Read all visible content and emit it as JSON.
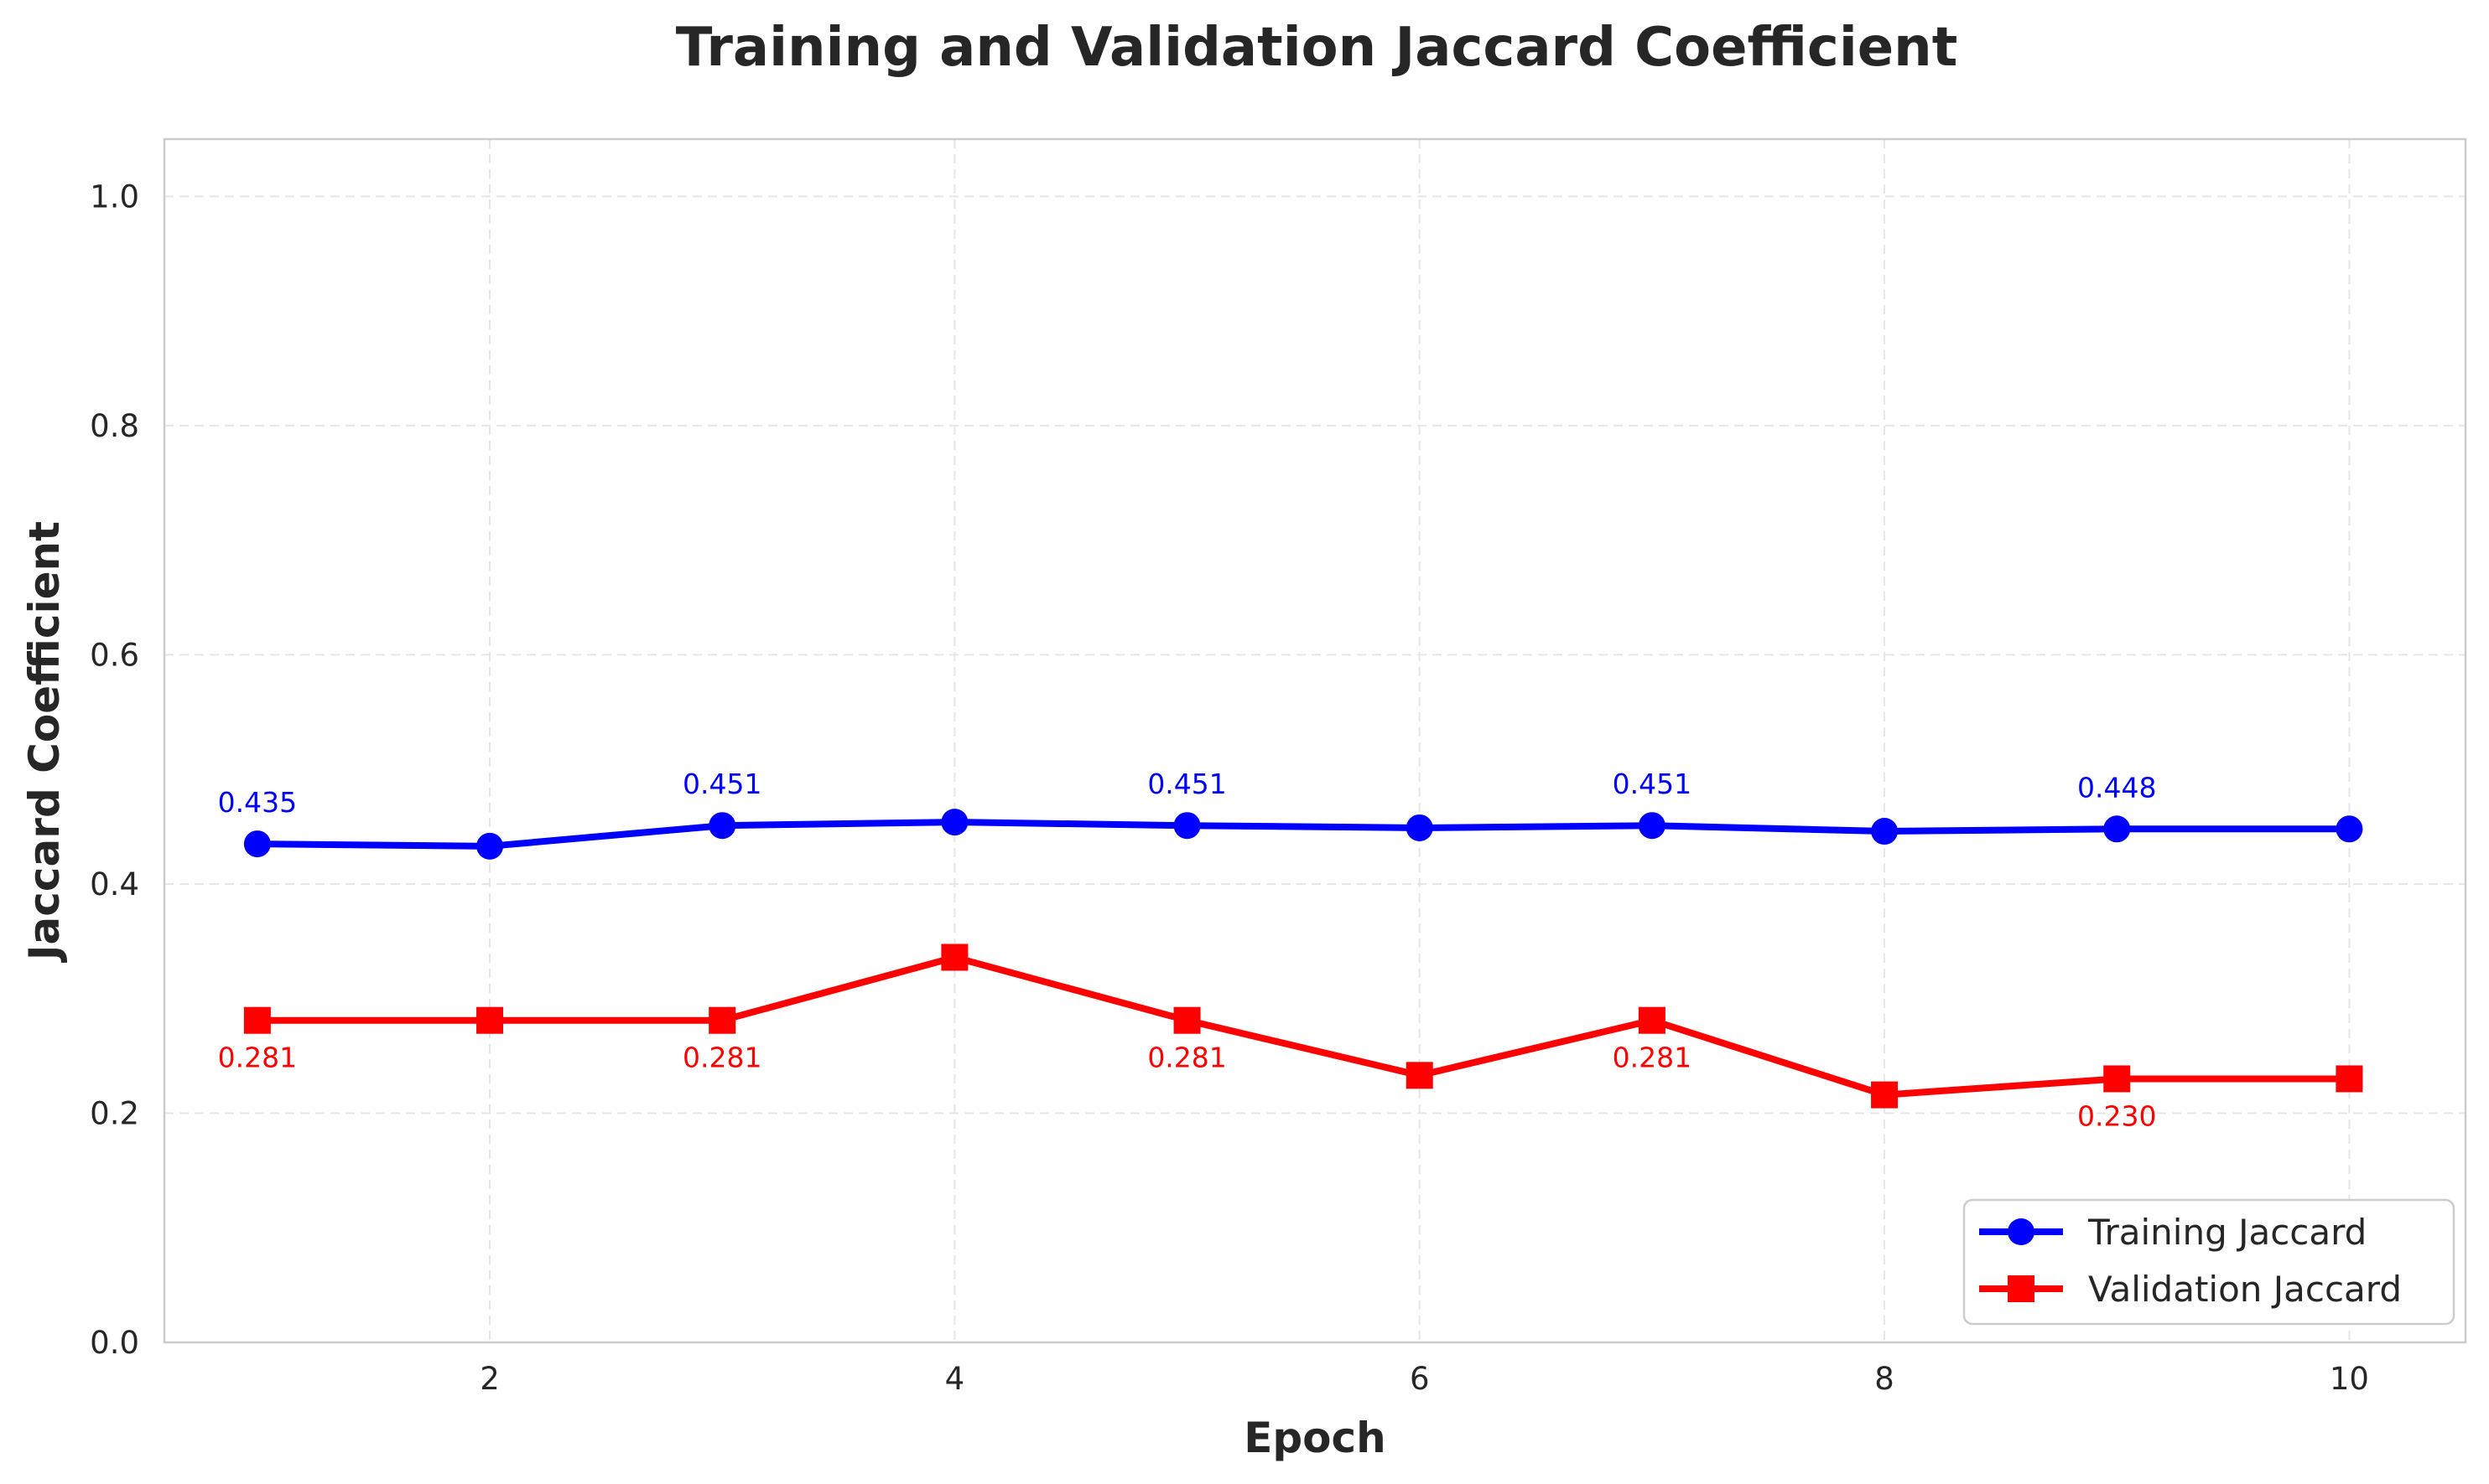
{
  "chart_data": {
    "type": "line",
    "title": "Training and Validation Jaccard Coefficient",
    "xlabel": "Epoch",
    "ylabel": "Jaccard Coefficient",
    "x": [
      1,
      2,
      3,
      4,
      5,
      6,
      7,
      8,
      9,
      10
    ],
    "xlim": [
      0.6,
      10.5
    ],
    "ylim": [
      0,
      1.05
    ],
    "xticks": [
      2,
      4,
      6,
      8,
      10
    ],
    "yticks": [
      0.0,
      0.2,
      0.4,
      0.6,
      0.8,
      1.0
    ],
    "xtick_labels": [
      "2",
      "4",
      "6",
      "8",
      "10"
    ],
    "ytick_labels": [
      "0.0",
      "0.2",
      "0.4",
      "0.6",
      "0.8",
      "1.0"
    ],
    "grid": true,
    "legend_position": "bottom-right",
    "series": [
      {
        "name": "Training Jaccard",
        "color": "#0000ff",
        "marker": "circle",
        "values": [
          0.435,
          0.433,
          0.451,
          0.454,
          0.451,
          0.449,
          0.451,
          0.446,
          0.448,
          0.448
        ],
        "data_labels": [
          {
            "index": 0,
            "text": "0.435"
          },
          {
            "index": 2,
            "text": "0.451"
          },
          {
            "index": 4,
            "text": "0.451"
          },
          {
            "index": 6,
            "text": "0.451"
          },
          {
            "index": 8,
            "text": "0.448"
          }
        ]
      },
      {
        "name": "Validation Jaccard",
        "color": "#ff0000",
        "marker": "square",
        "values": [
          0.281,
          0.281,
          0.281,
          0.336,
          0.281,
          0.233,
          0.281,
          0.216,
          0.23,
          0.23
        ],
        "data_labels": [
          {
            "index": 0,
            "text": "0.281"
          },
          {
            "index": 2,
            "text": "0.281"
          },
          {
            "index": 4,
            "text": "0.281"
          },
          {
            "index": 6,
            "text": "0.281"
          },
          {
            "index": 8,
            "text": "0.230"
          }
        ]
      }
    ]
  }
}
